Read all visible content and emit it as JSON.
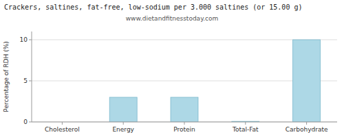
{
  "chart_data": {
    "type": "bar",
    "title": "Crackers, saltines, fat-free, low-sodium per 3.000 saltines (or 15.00 g)",
    "subtitle": "www.dietandfitnesstoday.com",
    "categories": [
      "Cholesterol",
      "Energy",
      "Protein",
      "Total-Fat",
      "Carbohydrate"
    ],
    "values": [
      0,
      3.0,
      3.0,
      0.07,
      10.0
    ],
    "color": "#add8e6",
    "ylabel": "Percentage of RDH (%)",
    "ylim": [
      0,
      11
    ],
    "yticks": [
      0,
      5,
      10
    ],
    "grid": true
  }
}
